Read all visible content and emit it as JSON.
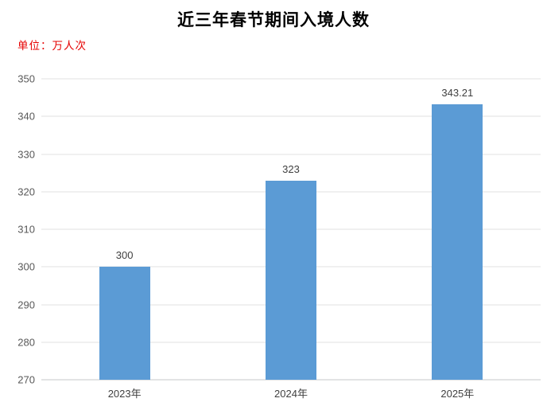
{
  "chart_data": {
    "type": "bar",
    "title": "近三年春节期间入境人数",
    "unit_label": "单位：万人次",
    "categories": [
      "2023年",
      "2024年",
      "2025年"
    ],
    "values": [
      300,
      323,
      343.21
    ],
    "value_labels": [
      "300",
      "323",
      "343.21"
    ],
    "y_ticks": [
      270,
      280,
      290,
      300,
      310,
      320,
      330,
      340,
      350
    ],
    "ylim": [
      270,
      350
    ],
    "xlabel": "",
    "ylabel": "",
    "grid": "horizontal",
    "legend": "none",
    "colors": {
      "bar": "#5b9bd5",
      "gridline": "#e2e2e2",
      "axis_line": "#c4c7ca",
      "tick_label": "#595959",
      "category_label": "#3f3f3f",
      "data_label": "#3f3f3f",
      "title": "#000000",
      "unit_label": "#e60000",
      "background": "#ffffff"
    }
  }
}
